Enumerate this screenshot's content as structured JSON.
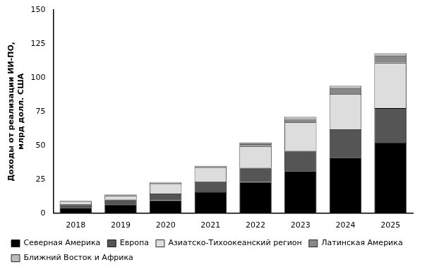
{
  "chart_data": {
    "type": "bar",
    "y_label": "Доходы от реализации ИИ-ПО, млрд долл. США",
    "categories": [
      "2018",
      "2019",
      "2020",
      "2021",
      "2022",
      "2023",
      "2024",
      "2025"
    ],
    "series": [
      {
        "name": "Северная Америка",
        "color": "#000000",
        "values": [
          4,
          6.5,
          9.5,
          15.5,
          23,
          31,
          41,
          52
        ]
      },
      {
        "name": "Европа",
        "color": "#555555",
        "values": [
          2.5,
          3.5,
          5,
          8,
          10.5,
          15,
          21,
          25.5
        ]
      },
      {
        "name": "Азиатско-Тихоокеанский регион",
        "color": "#dddddd",
        "values": [
          2,
          3,
          7,
          10,
          16,
          21,
          26,
          33.5
        ]
      },
      {
        "name": "Латинская Америка",
        "color": "#888888",
        "values": [
          0.5,
          0.6,
          1,
          1,
          1.5,
          2.5,
          4,
          5
        ]
      },
      {
        "name": "Ближний Восток и Африка",
        "color": "#bbbbbb",
        "values": [
          0.3,
          0.4,
          0.5,
          0.5,
          1,
          1.5,
          2,
          2
        ]
      }
    ],
    "ylim": [
      0,
      150
    ],
    "yticks": [
      0,
      25,
      50,
      75,
      100,
      125,
      150
    ],
    "stacked": true,
    "grid": false,
    "legend": "bottom"
  }
}
